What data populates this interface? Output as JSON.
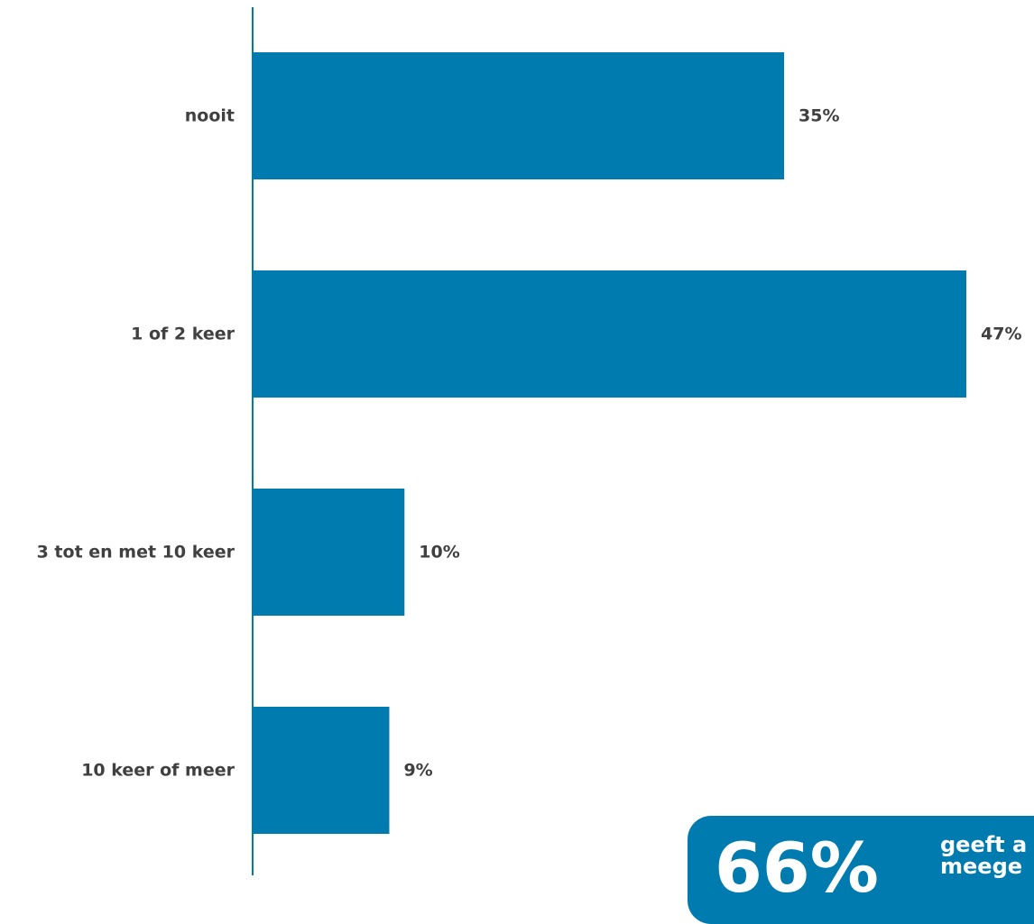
{
  "chart_data": {
    "type": "bar",
    "orientation": "horizontal",
    "categories": [
      "nooit",
      "1 of 2 keer",
      "3 tot en met 10 keer",
      "10 keer of meer"
    ],
    "values": [
      35,
      47,
      10,
      9
    ],
    "value_labels": [
      "35%",
      "47%",
      "10%",
      "9%"
    ],
    "unit": "%",
    "xlim": [
      0,
      47
    ],
    "grid": false,
    "legend": "none"
  },
  "colors": {
    "bar": "#007BB0",
    "axis": "#007BB0",
    "label_text": "#404040",
    "callout_bg": "#007BB0",
    "callout_text": "#FFFFFF"
  },
  "callout": {
    "big_value": "66%",
    "text_line1": "geeft a",
    "text_line2": "meege"
  }
}
